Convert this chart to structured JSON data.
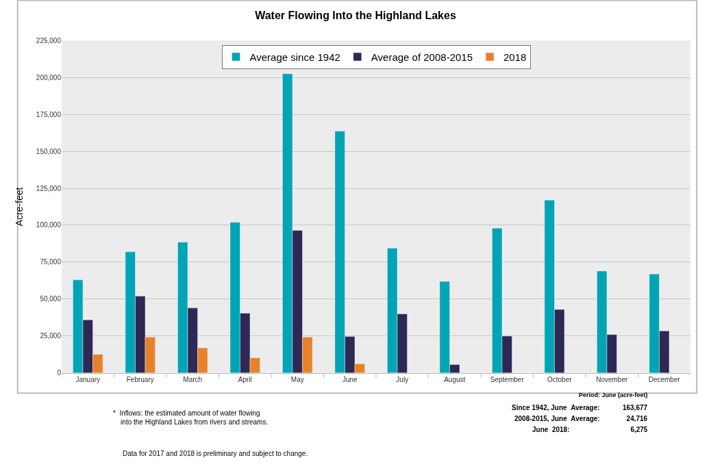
{
  "chart_data": {
    "type": "bar",
    "title": "Water Flowing Into the Highland Lakes",
    "ylabel": "Acre-feet",
    "categories": [
      "January",
      "February",
      "March",
      "April",
      "May",
      "June",
      "July",
      "August",
      "September",
      "October",
      "November",
      "December"
    ],
    "series": [
      {
        "name": "Average since 1942",
        "color": "#00a5b5",
        "values": [
          63000,
          82000,
          88500,
          102000,
          202500,
          163677,
          84500,
          62000,
          98000,
          117000,
          69000,
          67000
        ]
      },
      {
        "name": "Average of 2008-2015",
        "color": "#2e2857",
        "values": [
          36000,
          52000,
          44000,
          40500,
          96500,
          24716,
          40000,
          5700,
          25000,
          43000,
          26000,
          28500
        ]
      },
      {
        "name": "2018",
        "color": "#e8822a",
        "values": [
          12700,
          24300,
          17000,
          10200,
          24300,
          6275,
          null,
          null,
          null,
          null,
          null,
          null
        ]
      }
    ],
    "ylim": [
      0,
      225000
    ],
    "yticks": [
      {
        "value": 0,
        "label": "0"
      },
      {
        "value": 25000,
        "label": "25,000"
      },
      {
        "value": 50000,
        "label": "50,000"
      },
      {
        "value": 75000,
        "label": "75,000"
      },
      {
        "value": 100000,
        "label": "100,000"
      },
      {
        "value": 125000,
        "label": "125,000"
      },
      {
        "value": 150000,
        "label": "150,000"
      },
      {
        "value": 175000,
        "label": "175,000"
      },
      {
        "value": 200000,
        "label": "200,000"
      },
      {
        "value": 225000,
        "label": "225,000"
      }
    ],
    "grid": "y",
    "legend": "top",
    "annotations": [
      "*  Inflows: the estimated amount of water flowing\n    into the Highland Lakes from rivers and streams.",
      "Data for 2017 and 2018 is preliminary and subject to change.",
      "Period: June (acre-feet)",
      "Since 1942, June  Average:            163,677",
      "2008-2015, June  Average:              24,716",
      "June  2018:                                6,275"
    ]
  }
}
